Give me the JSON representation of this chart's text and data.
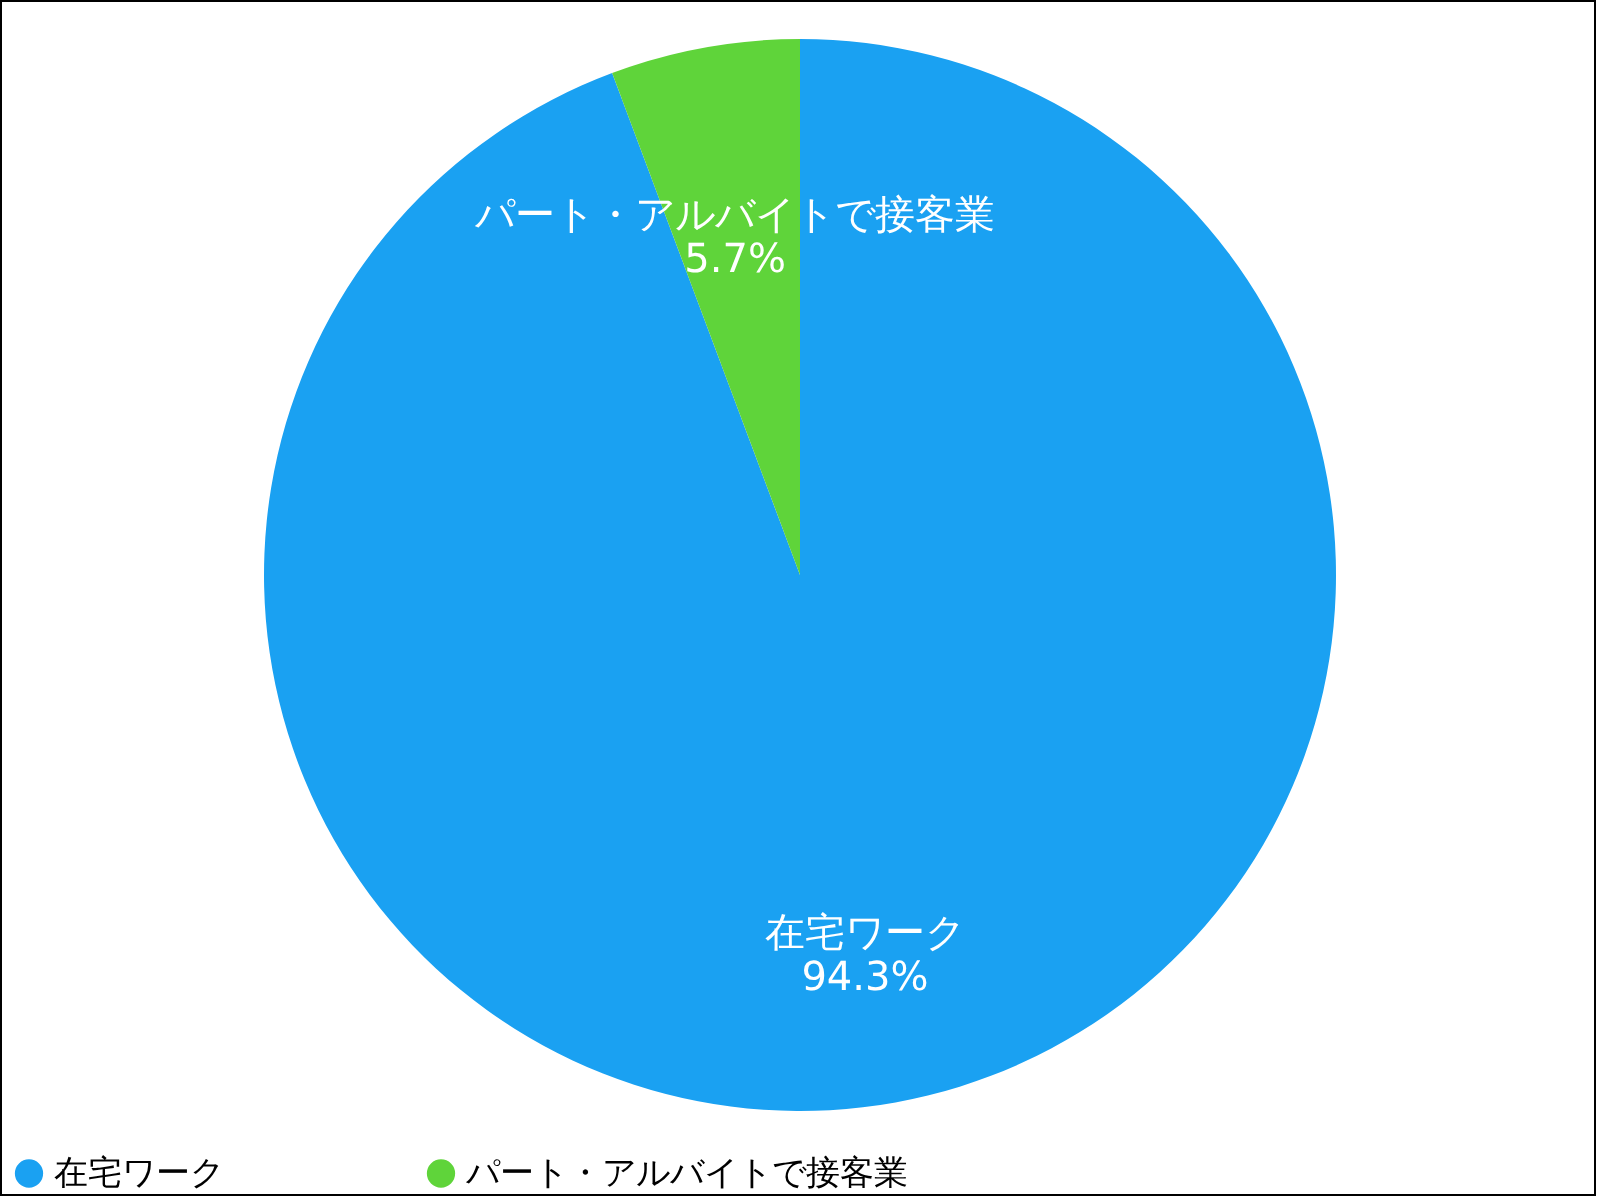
{
  "chart_data": {
    "type": "pie",
    "categories": [
      "在宅ワーク",
      "パート・アルバイトで接客業"
    ],
    "values": [
      94.3,
      5.7
    ],
    "colors": [
      "#1aa1f2",
      "#5fd43a"
    ],
    "value_labels": [
      "94.3%",
      "5.7%"
    ],
    "legend": "bottom"
  }
}
